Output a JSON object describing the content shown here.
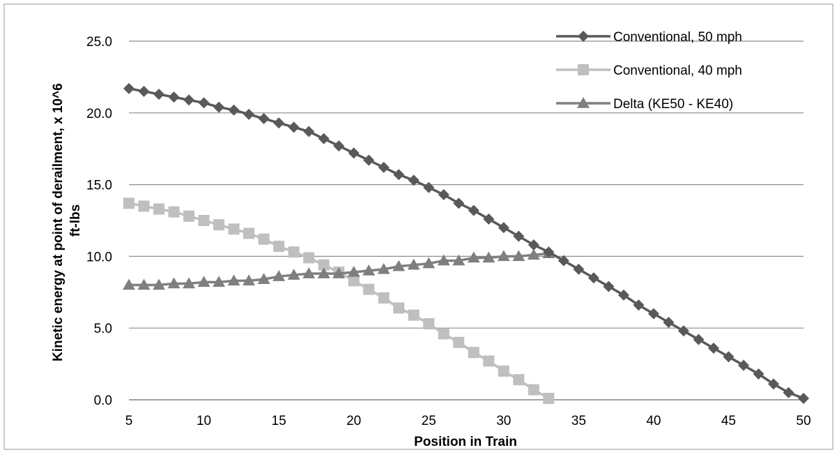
{
  "chart_data": {
    "type": "line",
    "title": "",
    "xlabel": "Position in Train",
    "ylabel": "Kinetic energy at point of derailment, x 10^6 ft-lbs",
    "ylabel_lines": [
      "Kinetic energy at point of derailment, x 10^6",
      "ft-lbs"
    ],
    "xlim": [
      5,
      50
    ],
    "ylim": [
      0,
      25
    ],
    "xticks": [
      5,
      10,
      15,
      20,
      25,
      30,
      35,
      40,
      45,
      50
    ],
    "xtick_labels": [
      "5",
      "10",
      "15",
      "20",
      "25",
      "30",
      "35",
      "40",
      "45",
      "50"
    ],
    "yticks": [
      0,
      5,
      10,
      15,
      20,
      25
    ],
    "ytick_labels": [
      "0.0",
      "5.0",
      "10.0",
      "15.0",
      "20.0",
      "25.0"
    ],
    "grid": "horizontal",
    "legend_position": "top-right",
    "series": [
      {
        "name": "Conventional, 50 mph",
        "color": "#595959",
        "marker": "diamond",
        "x": [
          5,
          6,
          7,
          8,
          9,
          10,
          11,
          12,
          13,
          14,
          15,
          16,
          17,
          18,
          19,
          20,
          21,
          22,
          23,
          24,
          25,
          26,
          27,
          28,
          29,
          30,
          31,
          32,
          33,
          34,
          35,
          36,
          37,
          38,
          39,
          40,
          41,
          42,
          43,
          44,
          45,
          46,
          47,
          48,
          49,
          50
        ],
        "values": [
          21.7,
          21.5,
          21.3,
          21.1,
          20.9,
          20.7,
          20.4,
          20.2,
          19.9,
          19.6,
          19.3,
          19.0,
          18.7,
          18.2,
          17.7,
          17.2,
          16.7,
          16.2,
          15.7,
          15.3,
          14.8,
          14.3,
          13.7,
          13.2,
          12.6,
          12.0,
          11.4,
          10.8,
          10.3,
          9.7,
          9.1,
          8.5,
          7.9,
          7.3,
          6.6,
          6.0,
          5.4,
          4.8,
          4.2,
          3.6,
          3.0,
          2.4,
          1.8,
          1.1,
          0.5,
          0.1
        ]
      },
      {
        "name": "Conventional, 40 mph",
        "color": "#bfbfbf",
        "marker": "square",
        "x": [
          5,
          6,
          7,
          8,
          9,
          10,
          11,
          12,
          13,
          14,
          15,
          16,
          17,
          18,
          19,
          20,
          21,
          22,
          23,
          24,
          25,
          26,
          27,
          28,
          29,
          30,
          31,
          32,
          33
        ],
        "values": [
          13.7,
          13.5,
          13.3,
          13.1,
          12.8,
          12.5,
          12.2,
          11.9,
          11.6,
          11.2,
          10.7,
          10.3,
          9.9,
          9.4,
          8.9,
          8.3,
          7.7,
          7.1,
          6.4,
          5.9,
          5.3,
          4.6,
          4.0,
          3.3,
          2.7,
          2.0,
          1.4,
          0.7,
          0.1
        ]
      },
      {
        "name": "Delta (KE50 - KE40)",
        "color": "#7f7f7f",
        "marker": "triangle",
        "x": [
          5,
          6,
          7,
          8,
          9,
          10,
          11,
          12,
          13,
          14,
          15,
          16,
          17,
          18,
          19,
          20,
          21,
          22,
          23,
          24,
          25,
          26,
          27,
          28,
          29,
          30,
          31,
          32,
          33
        ],
        "values": [
          8.0,
          8.0,
          8.0,
          8.1,
          8.1,
          8.2,
          8.2,
          8.3,
          8.3,
          8.4,
          8.6,
          8.7,
          8.8,
          8.8,
          8.8,
          8.9,
          9.0,
          9.1,
          9.3,
          9.4,
          9.5,
          9.7,
          9.7,
          9.9,
          9.9,
          10.0,
          10.0,
          10.1,
          10.2
        ]
      }
    ]
  }
}
